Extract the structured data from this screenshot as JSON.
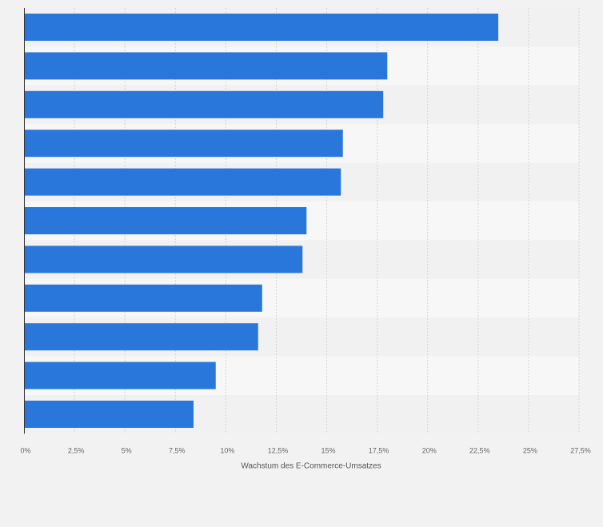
{
  "chart_data": {
    "type": "bar",
    "orientation": "horizontal",
    "categories": [
      "",
      "",
      "",
      "",
      "",
      "",
      "",
      "",
      "",
      "",
      ""
    ],
    "values": [
      23.5,
      18.0,
      17.8,
      15.8,
      15.7,
      14.0,
      13.8,
      11.8,
      11.6,
      9.5,
      8.4
    ],
    "xlabel": "Wachstum des E-Commerce-Umsatzes",
    "ylabel": "",
    "xlim": [
      0,
      27.5
    ],
    "ticks": [
      0,
      2.5,
      5,
      7.5,
      10,
      12.5,
      15,
      17.5,
      20,
      22.5,
      25,
      27.5
    ],
    "tick_labels": [
      "0%",
      "2,5%",
      "5%",
      "7,5%",
      "10%",
      "12,5%",
      "15%",
      "17,5%",
      "20%",
      "22,5%",
      "25%",
      "27,5%"
    ],
    "grid": true,
    "bar_color": "#2a77dc",
    "band_colors": [
      "#f1f1f1",
      "#f7f7f7"
    ]
  }
}
